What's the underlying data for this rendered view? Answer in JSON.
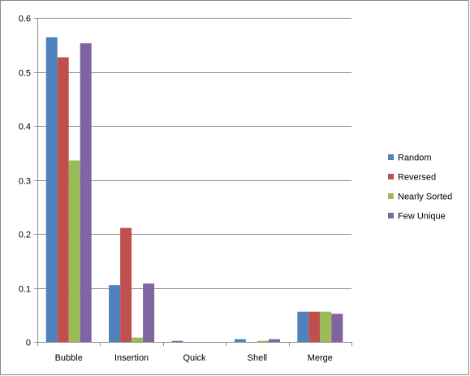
{
  "chart_data": {
    "type": "bar",
    "categories": [
      "Bubble",
      "Insertion",
      "Quick",
      "Shell",
      "Merge"
    ],
    "series": [
      {
        "name": "Random",
        "color": "#4f81bd",
        "values": [
          0.564,
          0.105,
          0.002,
          0.005,
          0.056
        ]
      },
      {
        "name": "Reversed",
        "color": "#c0504d",
        "values": [
          0.527,
          0.211,
          0.0,
          0.0,
          0.056
        ]
      },
      {
        "name": "Nearly Sorted",
        "color": "#9bbb59",
        "values": [
          0.336,
          0.008,
          0.0,
          0.002,
          0.056
        ]
      },
      {
        "name": "Few Unique",
        "color": "#8064a2",
        "values": [
          0.553,
          0.108,
          0.0,
          0.005,
          0.052
        ]
      }
    ],
    "ylim": [
      0,
      0.6
    ],
    "yticks": [
      "0",
      "0.1",
      "0.2",
      "0.3",
      "0.4",
      "0.5",
      "0.6"
    ],
    "title": "",
    "xlabel": "",
    "ylabel": "",
    "grid": true,
    "legend_position": "right"
  }
}
